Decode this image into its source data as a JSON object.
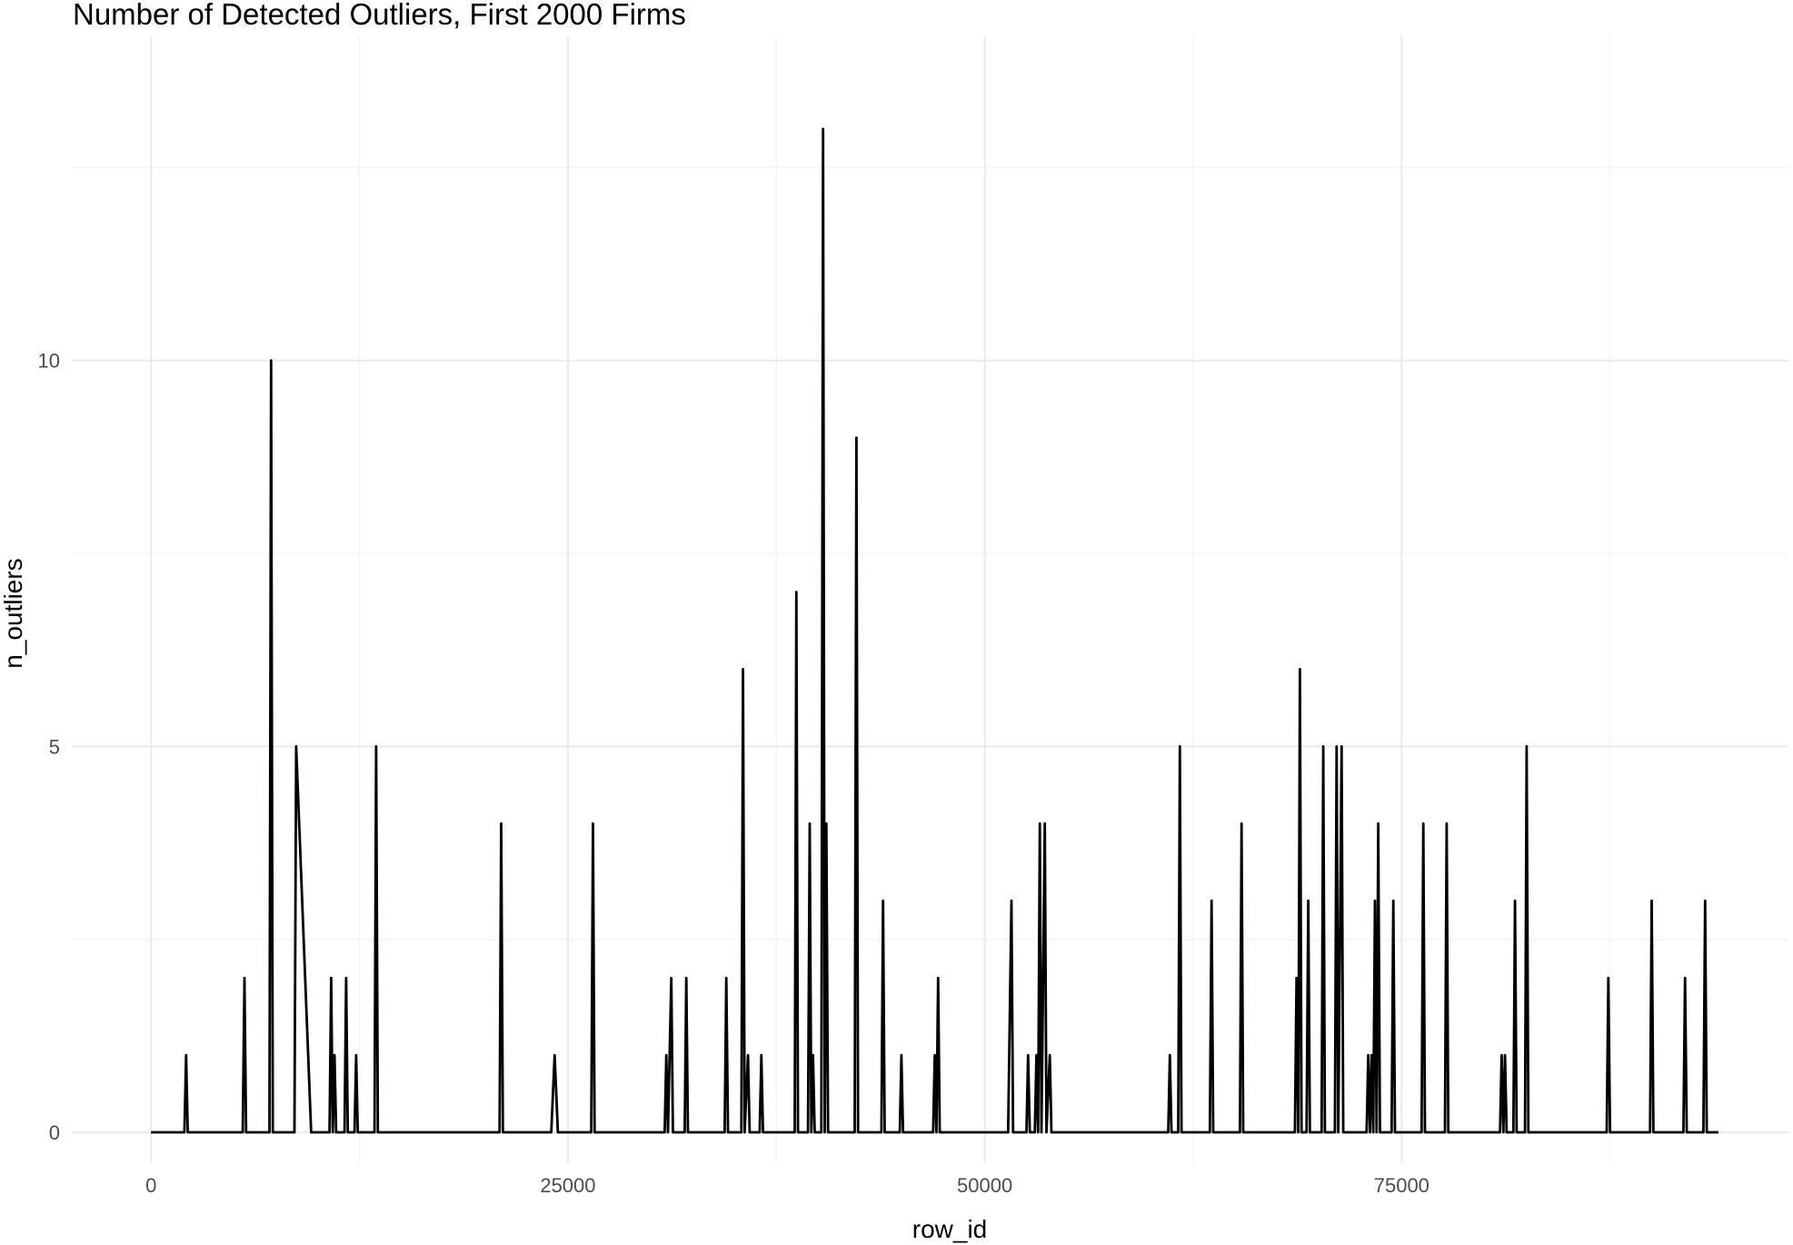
{
  "chart_data": {
    "type": "line",
    "title": "Number of Detected Outliers, First 2000 Firms",
    "xlabel": "row_id",
    "ylabel": "n_outliers",
    "xlim": [
      -4700,
      98200
    ],
    "ylim": [
      -0.4,
      14.2
    ],
    "x_ticks": [
      0,
      25000,
      50000,
      75000
    ],
    "x_tick_labels": [
      "0",
      "25000",
      "50000",
      "75000"
    ],
    "x_minor_ticks": [
      12500,
      37500,
      62500,
      87500
    ],
    "y_ticks": [
      0,
      5,
      10
    ],
    "y_tick_labels": [
      "0",
      "5",
      "10"
    ],
    "y_minor_ticks": [
      2.5,
      7.5,
      12.5
    ],
    "grid": true,
    "legend": "none",
    "series": [
      {
        "points": [
          [
            0,
            0
          ],
          [
            2000,
            0
          ],
          [
            2100,
            1
          ],
          [
            2200,
            0
          ],
          [
            5500,
            0
          ],
          [
            5600,
            2
          ],
          [
            5700,
            0
          ],
          [
            7100,
            0
          ],
          [
            7200,
            10
          ],
          [
            7300,
            0
          ],
          [
            8600,
            0
          ],
          [
            8700,
            5
          ],
          [
            9600,
            0
          ],
          [
            10700,
            0
          ],
          [
            10800,
            2
          ],
          [
            10900,
            0
          ],
          [
            11000,
            1
          ],
          [
            11100,
            0
          ],
          [
            11600,
            0
          ],
          [
            11700,
            2
          ],
          [
            11800,
            0
          ],
          [
            12200,
            0
          ],
          [
            12300,
            1
          ],
          [
            12400,
            0
          ],
          [
            13400,
            0
          ],
          [
            13500,
            5
          ],
          [
            13600,
            0
          ],
          [
            20900,
            0
          ],
          [
            21000,
            4
          ],
          [
            21100,
            0
          ],
          [
            24000,
            0
          ],
          [
            24200,
            1
          ],
          [
            24400,
            0
          ],
          [
            26400,
            0
          ],
          [
            26500,
            4
          ],
          [
            26600,
            0
          ],
          [
            30800,
            0
          ],
          [
            30900,
            1
          ],
          [
            31000,
            0
          ],
          [
            31200,
            2
          ],
          [
            31300,
            0
          ],
          [
            32000,
            0
          ],
          [
            32100,
            2
          ],
          [
            32200,
            0
          ],
          [
            34400,
            0
          ],
          [
            34500,
            2
          ],
          [
            34600,
            0
          ],
          [
            35400,
            0
          ],
          [
            35500,
            6
          ],
          [
            35600,
            0
          ],
          [
            35800,
            1
          ],
          [
            35900,
            0
          ],
          [
            36500,
            0
          ],
          [
            36600,
            1
          ],
          [
            36700,
            0
          ],
          [
            38600,
            0
          ],
          [
            38700,
            7
          ],
          [
            38800,
            0
          ],
          [
            39400,
            0
          ],
          [
            39500,
            4
          ],
          [
            39600,
            0
          ],
          [
            39700,
            1
          ],
          [
            39800,
            0
          ],
          [
            40200,
            0
          ],
          [
            40300,
            13
          ],
          [
            40400,
            0
          ],
          [
            40500,
            4
          ],
          [
            40600,
            0
          ],
          [
            42200,
            0
          ],
          [
            42300,
            9
          ],
          [
            42400,
            0
          ],
          [
            43800,
            0
          ],
          [
            43900,
            3
          ],
          [
            44000,
            0
          ],
          [
            44900,
            0
          ],
          [
            45000,
            1
          ],
          [
            45100,
            0
          ],
          [
            46900,
            0
          ],
          [
            47000,
            1
          ],
          [
            47100,
            0
          ],
          [
            47200,
            2
          ],
          [
            47300,
            0
          ],
          [
            51400,
            0
          ],
          [
            51600,
            3
          ],
          [
            51700,
            0
          ],
          [
            52500,
            0
          ],
          [
            52600,
            1
          ],
          [
            52700,
            0
          ],
          [
            53000,
            0
          ],
          [
            53100,
            1
          ],
          [
            53200,
            0
          ],
          [
            53300,
            4
          ],
          [
            53400,
            0
          ],
          [
            53600,
            4
          ],
          [
            53700,
            0
          ],
          [
            53900,
            1
          ],
          [
            54000,
            0
          ],
          [
            61000,
            0
          ],
          [
            61100,
            1
          ],
          [
            61200,
            0
          ],
          [
            61600,
            0
          ],
          [
            61700,
            5
          ],
          [
            61800,
            0
          ],
          [
            63500,
            0
          ],
          [
            63600,
            3
          ],
          [
            63700,
            0
          ],
          [
            65300,
            0
          ],
          [
            65400,
            4
          ],
          [
            65500,
            0
          ],
          [
            68600,
            0
          ],
          [
            68700,
            2
          ],
          [
            68800,
            0
          ],
          [
            68900,
            6
          ],
          [
            69000,
            0
          ],
          [
            69300,
            0
          ],
          [
            69400,
            3
          ],
          [
            69500,
            0
          ],
          [
            70200,
            0
          ],
          [
            70300,
            5
          ],
          [
            70400,
            0
          ],
          [
            71000,
            0
          ],
          [
            71100,
            5
          ],
          [
            71200,
            0
          ],
          [
            71400,
            5
          ],
          [
            71500,
            0
          ],
          [
            72900,
            0
          ],
          [
            73000,
            1
          ],
          [
            73100,
            0
          ],
          [
            73200,
            1
          ],
          [
            73300,
            0
          ],
          [
            73400,
            3
          ],
          [
            73500,
            0
          ],
          [
            73600,
            4
          ],
          [
            73700,
            0
          ],
          [
            74400,
            0
          ],
          [
            74500,
            3
          ],
          [
            74600,
            0
          ],
          [
            76200,
            0
          ],
          [
            76300,
            4
          ],
          [
            76400,
            0
          ],
          [
            77600,
            0
          ],
          [
            77700,
            4
          ],
          [
            77800,
            0
          ],
          [
            80900,
            0
          ],
          [
            81000,
            1
          ],
          [
            81100,
            0
          ],
          [
            81200,
            1
          ],
          [
            81300,
            0
          ],
          [
            81700,
            0
          ],
          [
            81800,
            3
          ],
          [
            81900,
            0
          ],
          [
            82400,
            0
          ],
          [
            82500,
            5
          ],
          [
            82600,
            0
          ],
          [
            87300,
            0
          ],
          [
            87400,
            2
          ],
          [
            87500,
            0
          ],
          [
            89900,
            0
          ],
          [
            90000,
            3
          ],
          [
            90100,
            0
          ],
          [
            91900,
            0
          ],
          [
            92000,
            2
          ],
          [
            92100,
            0
          ],
          [
            93100,
            0
          ],
          [
            93200,
            3
          ],
          [
            93300,
            0
          ],
          [
            94000,
            0
          ]
        ]
      }
    ]
  }
}
